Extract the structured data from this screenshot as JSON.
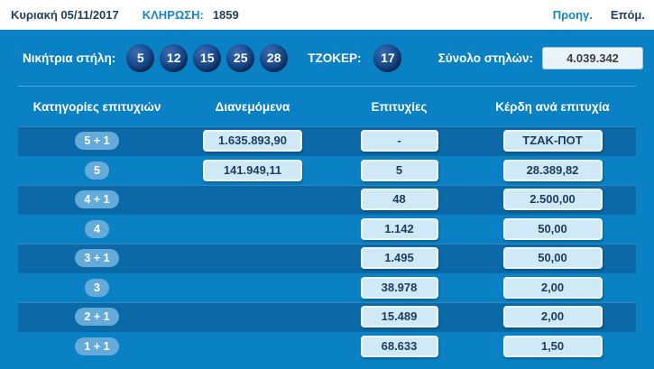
{
  "topbar": {
    "date": "Κυριακή 05/11/2017",
    "draw_label": "ΚΛΗΡΩΣΗ:",
    "draw_number": "1859",
    "prev_label": "Προηγ.",
    "next_label": "Επόμ."
  },
  "panel": {
    "winning_label": "Νικήτρια στήλη:",
    "numbers": [
      "5",
      "12",
      "15",
      "25",
      "28"
    ],
    "joker_label": "ΤΖΟΚΕΡ:",
    "joker_number": "17",
    "total_columns_label": "Σύνολο στηλών:",
    "total_columns_value": "4.039.342"
  },
  "table": {
    "headers": [
      "Κατηγορίες επιτυχιών",
      "Διανεμόμενα",
      "Επιτυχίες",
      "Κέρδη ανά επιτυχία"
    ],
    "rows": [
      {
        "category": "5 + 1",
        "distributed": "1.635.893,90",
        "winners": "-",
        "prize": "ΤΖΑΚ-ΠΟΤ"
      },
      {
        "category": "5",
        "distributed": "141.949,11",
        "winners": "5",
        "prize": "28.389,82"
      },
      {
        "category": "4 + 1",
        "distributed": "",
        "winners": "48",
        "prize": "2.500,00"
      },
      {
        "category": "4",
        "distributed": "",
        "winners": "1.142",
        "prize": "50,00"
      },
      {
        "category": "3 + 1",
        "distributed": "",
        "winners": "1.495",
        "prize": "50,00"
      },
      {
        "category": "3",
        "distributed": "",
        "winners": "38.978",
        "prize": "2,00"
      },
      {
        "category": "2 + 1",
        "distributed": "",
        "winners": "15.489",
        "prize": "2,00"
      },
      {
        "category": "1 + 1",
        "distributed": "",
        "winners": "68.633",
        "prize": "1,50"
      }
    ]
  },
  "colors": {
    "panel_blue": "#0981C4",
    "stripe_blue": "#0C69A8",
    "ball_navy": "#0E3C78",
    "pill_blue": "#64ABD9",
    "box_bg": "#CFE9F7",
    "box_text": "#1C3C5E",
    "link_blue": "#1386C9",
    "dark_text": "#22415F"
  }
}
